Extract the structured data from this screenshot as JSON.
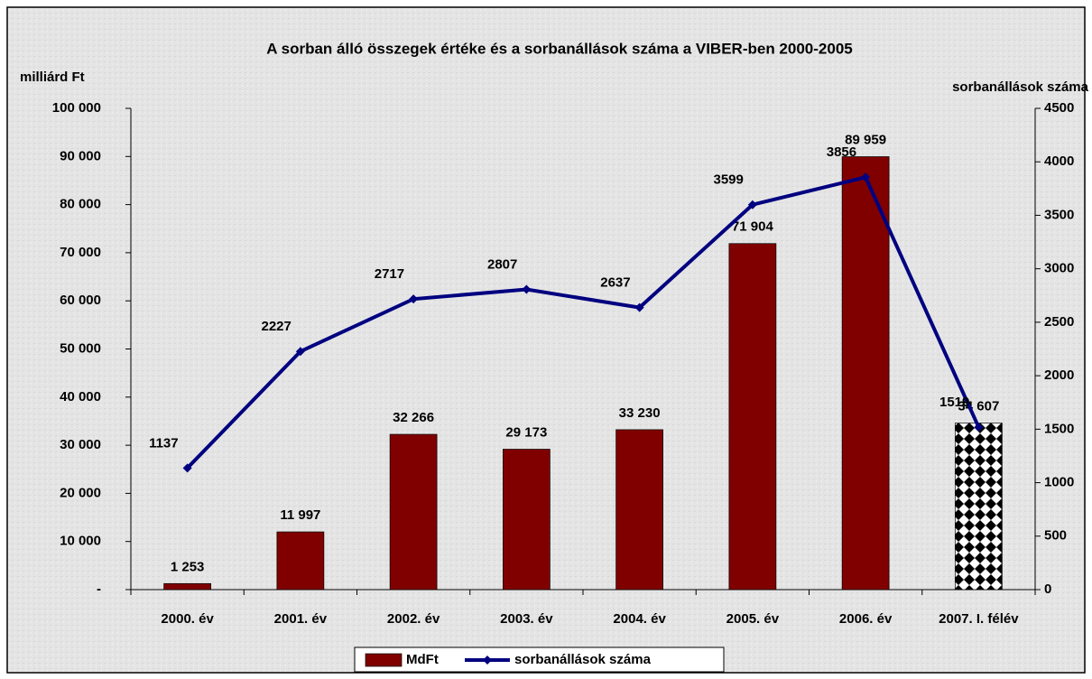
{
  "chart_data": {
    "type": "bar_line",
    "title": "A sorban álló összegek értéke és a sorbanállások száma a VIBER-ben 2000-2005",
    "y_label": "milliárd Ft",
    "y2_label": "sorbanállások száma",
    "categories": [
      "2000. év",
      "2001. év",
      "2002. év",
      "2003. év",
      "2004. év",
      "2005. év",
      "2006. év",
      "2007. I. félév"
    ],
    "series": [
      {
        "name": "MdFt",
        "type": "bar",
        "color": "#800000",
        "colors": [
          "#800000",
          "#800000",
          "#800000",
          "#800000",
          "#800000",
          "#800000",
          "#800000",
          "#000000"
        ],
        "values": [
          1253,
          11997,
          32266,
          29173,
          33230,
          71904,
          89959,
          34607
        ],
        "value_labels": [
          "1 253",
          "11 997",
          "32 266",
          "29 173",
          "33 230",
          "71 904",
          "89 959",
          "34 607"
        ]
      },
      {
        "name": "sorbanállások száma",
        "type": "line",
        "color": "#000080",
        "axis": "y2",
        "values": [
          1137,
          2227,
          2717,
          2807,
          2637,
          3599,
          3856,
          1519
        ]
      }
    ],
    "ylim": [
      0,
      100000
    ],
    "yticks": [
      {
        "value": 0,
        "label": "-"
      },
      {
        "value": 10000,
        "label": "10 000"
      },
      {
        "value": 20000,
        "label": "20 000"
      },
      {
        "value": 30000,
        "label": "30 000"
      },
      {
        "value": 40000,
        "label": "40 000"
      },
      {
        "value": 50000,
        "label": "50 000"
      },
      {
        "value": 60000,
        "label": "60 000"
      },
      {
        "value": 70000,
        "label": "70 000"
      },
      {
        "value": 80000,
        "label": "80 000"
      },
      {
        "value": 90000,
        "label": "90 000"
      },
      {
        "value": 100000,
        "label": "100 000"
      }
    ],
    "y2lim": [
      0,
      4500
    ],
    "y2ticks": [
      0,
      500,
      1000,
      1500,
      2000,
      2500,
      3000,
      3500,
      4000,
      4500
    ],
    "legend": "bottom"
  }
}
